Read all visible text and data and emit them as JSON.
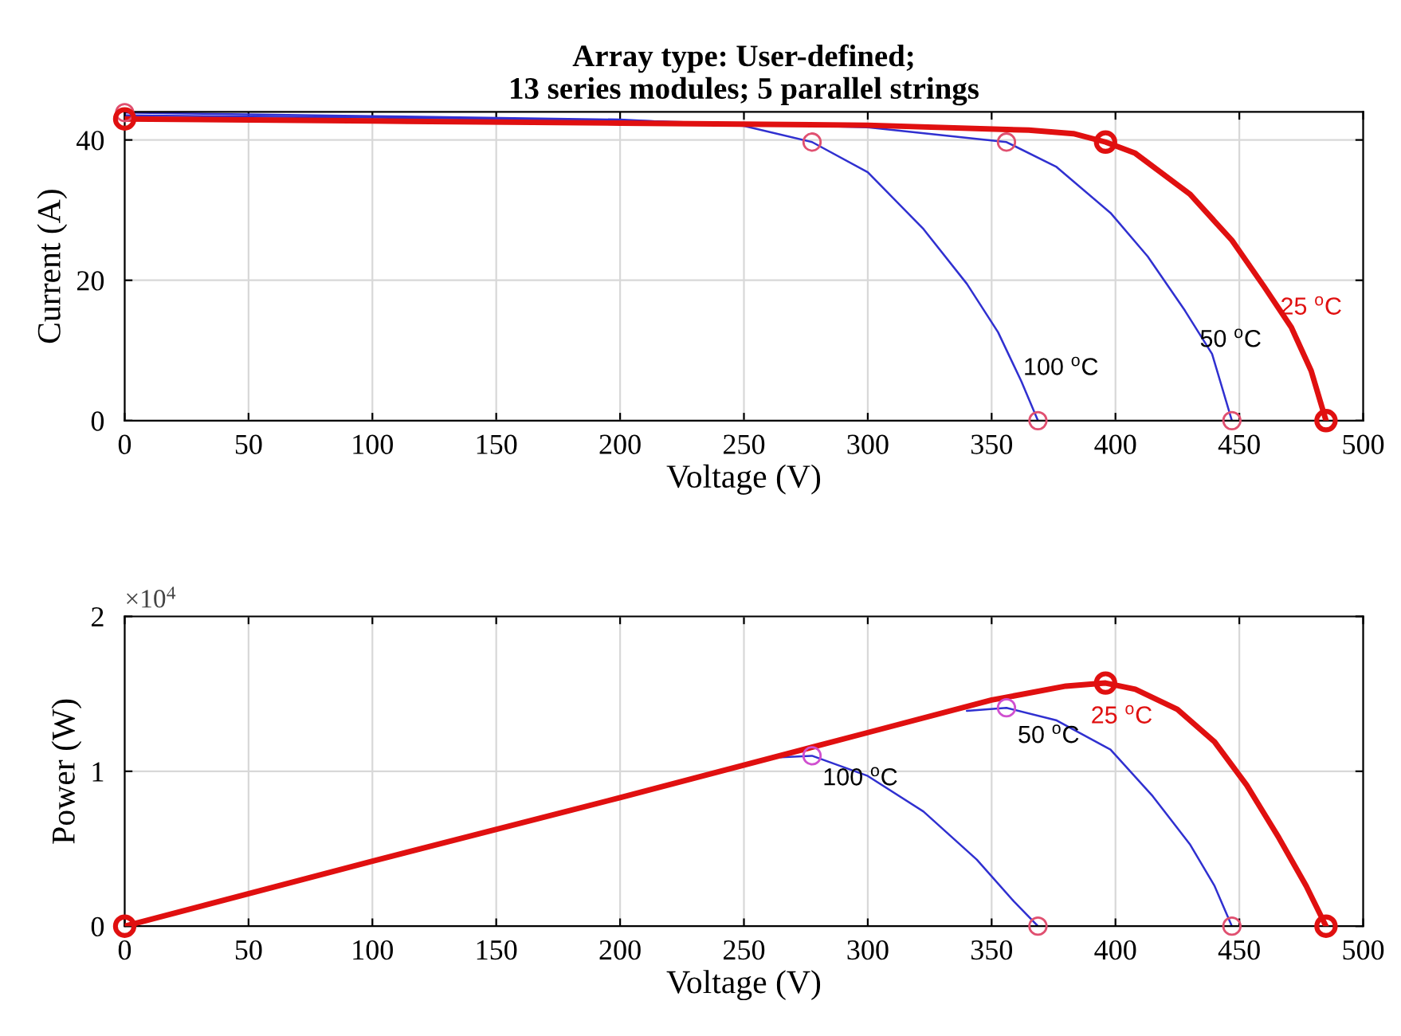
{
  "chart_data": [
    {
      "type": "line",
      "title": "Array type: User-defined;\n13 series modules; 5 parallel strings",
      "xlabel": "Voltage (V)",
      "ylabel": "Current (A)",
      "xlim": [
        0,
        500
      ],
      "ylim": [
        0,
        44
      ],
      "xticks": [
        0,
        50,
        100,
        150,
        200,
        250,
        300,
        350,
        400,
        450,
        500
      ],
      "yticks": [
        0,
        20,
        40
      ],
      "grid": true,
      "series": [
        {
          "name": "100 $^{o}$C",
          "color": "#3030d0",
          "x": [
            0,
            100,
            200,
            250,
            277.5,
            300,
            322.5,
            340,
            352.6,
            362,
            368.7
          ],
          "values": [
            43.9,
            43.4,
            42.9,
            42,
            39.7,
            35.4,
            27.3,
            19.5,
            12.6,
            5.6,
            0
          ]
        },
        {
          "name": "50 $^{o}$C",
          "color": "#3030d0",
          "x": [
            0,
            100,
            200,
            300,
            356,
            376,
            398,
            413,
            428,
            439,
            447
          ],
          "values": [
            43.5,
            43.2,
            42.8,
            41.8,
            39.7,
            36.2,
            29.6,
            23.4,
            15.7,
            9.5,
            0
          ]
        },
        {
          "name": "25 $^{o}$C",
          "color": "#e01010",
          "x": [
            0,
            100,
            200,
            300,
            365,
            383,
            396,
            408,
            430,
            447,
            460,
            471,
            479,
            485
          ],
          "values": [
            43,
            42.7,
            42.4,
            42.1,
            41.4,
            40.9,
            39.7,
            38.1,
            32.3,
            25.7,
            19.1,
            13.3,
            7.1,
            0
          ]
        },
        {
          "type": "scatter",
          "marker": "circle",
          "color": "#e05070",
          "x": [
            0,
            277.5,
            368.7
          ],
          "values": [
            43.9,
            39.7,
            0
          ]
        },
        {
          "type": "scatter",
          "marker": "circle",
          "color": "#e05070",
          "x": [
            356,
            447
          ],
          "values": [
            39.7,
            0
          ]
        },
        {
          "type": "scatter",
          "marker": "circle",
          "color": "#e01010",
          "x": [
            0,
            396,
            485
          ],
          "values": [
            43,
            39.7,
            0
          ]
        }
      ]
    },
    {
      "type": "line",
      "xlabel": "Voltage (V)",
      "ylabel": "Power (W)",
      "xlim": [
        0,
        500
      ],
      "ylim": [
        0,
        2
      ],
      "xticks": [
        0,
        50,
        100,
        150,
        200,
        250,
        300,
        350,
        400,
        450,
        500
      ],
      "yticks": [
        0,
        1,
        2
      ],
      "grid": true,
      "series": [
        {
          "name": "100 $^{o}$C",
          "color": "#3030d0",
          "x": [
            265,
            277.5,
            300,
            322.5,
            344,
            359,
            368.7
          ],
          "values": [
            1.09,
            1.1,
            0.97,
            0.74,
            0.43,
            0.16,
            0
          ]
        },
        {
          "name": "50 $^{o}$C",
          "color": "#3030d0",
          "x": [
            340,
            356,
            376,
            398,
            415,
            430,
            440,
            447
          ],
          "values": [
            1.39,
            1.41,
            1.33,
            1.14,
            0.84,
            0.53,
            0.26,
            0
          ]
        },
        {
          "name": "25 $^{o}$C",
          "color": "#e01010",
          "x": [
            0,
            100,
            200,
            300,
            350,
            380,
            396,
            408,
            425,
            440,
            453,
            466,
            477,
            485
          ],
          "values": [
            0,
            0.42,
            0.83,
            1.25,
            1.46,
            1.55,
            1.57,
            1.53,
            1.4,
            1.19,
            0.91,
            0.57,
            0.26,
            0
          ]
        },
        {
          "type": "scatter",
          "marker": "circle",
          "color": "#d050d0",
          "x": [
            277.5
          ],
          "values": [
            1.1
          ]
        },
        {
          "type": "scatter",
          "marker": "circle",
          "color": "#d050d0",
          "x": [
            356
          ],
          "values": [
            1.41
          ]
        },
        {
          "type": "scatter",
          "marker": "circle",
          "color": "#e05070",
          "x": [
            368.7,
            447
          ],
          "values": [
            0,
            0
          ]
        },
        {
          "type": "scatter",
          "marker": "circle",
          "color": "#e01010",
          "x": [
            0,
            396,
            485
          ],
          "values": [
            0,
            1.57,
            0
          ]
        }
      ],
      "annotations": [
        "×10$^{4}$"
      ]
    }
  ]
}
